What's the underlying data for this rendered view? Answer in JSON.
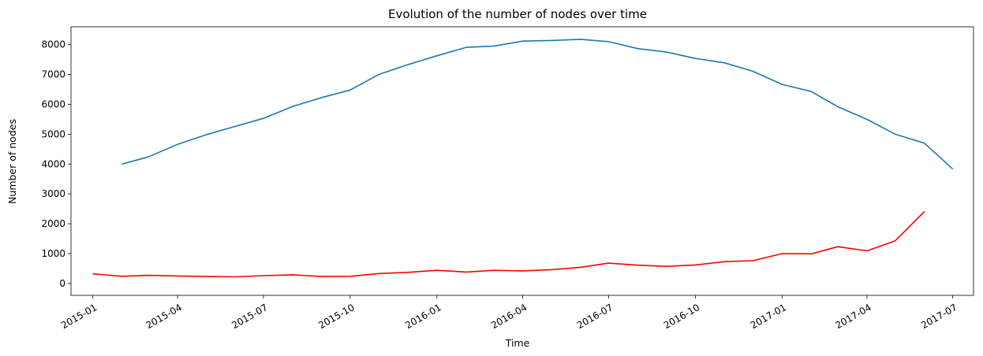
{
  "chart_data": {
    "type": "line",
    "title": "Evolution of the number of nodes over time",
    "xlabel": "Time",
    "ylabel": "Number of nodes",
    "xlim": [
      "2014-12-09",
      "2017-07-23"
    ],
    "ylim": [
      -400,
      8600
    ],
    "grid": false,
    "legend": "none",
    "x_ticks": [
      "2015-01",
      "2015-04",
      "2015-07",
      "2015-10",
      "2016-01",
      "2016-04",
      "2016-07",
      "2016-10",
      "2017-01",
      "2017-04",
      "2017-07"
    ],
    "y_ticks": [
      "0",
      "1000",
      "2000",
      "3000",
      "4000",
      "5000",
      "6000",
      "7000",
      "8000"
    ],
    "series": [
      {
        "color": "#1f77b4",
        "x": [
          "2015-02",
          "2015-03",
          "2015-04",
          "2015-05",
          "2015-06",
          "2015-07",
          "2015-08",
          "2015-09",
          "2015-10",
          "2015-11",
          "2015-12",
          "2016-01",
          "2016-02",
          "2016-03",
          "2016-04",
          "2016-05",
          "2016-06",
          "2016-07",
          "2016-08",
          "2016-09",
          "2016-10",
          "2016-11",
          "2016-12",
          "2017-01",
          "2017-02",
          "2017-03",
          "2017-04",
          "2017-05",
          "2017-06",
          "2017-07"
        ],
        "values": [
          4000,
          4240,
          4660,
          4980,
          5260,
          5530,
          5930,
          6230,
          6480,
          7010,
          7330,
          7630,
          7910,
          7950,
          8120,
          8140,
          8180,
          8100,
          7870,
          7750,
          7540,
          7390,
          7110,
          6670,
          6430,
          5920,
          5500,
          5000,
          4700,
          3830
        ]
      },
      {
        "color": "#ff0000",
        "x": [
          "2015-01",
          "2015-02",
          "2015-03",
          "2015-04",
          "2015-05",
          "2015-06",
          "2015-07",
          "2015-08",
          "2015-09",
          "2015-10",
          "2015-11",
          "2015-12",
          "2016-01",
          "2016-02",
          "2016-03",
          "2016-04",
          "2016-05",
          "2016-06",
          "2016-07",
          "2016-08",
          "2016-09",
          "2016-10",
          "2016-11",
          "2016-12",
          "2017-01",
          "2017-02",
          "2017-03",
          "2017-04",
          "2017-05",
          "2017-06"
        ],
        "values": [
          320,
          240,
          270,
          250,
          230,
          220,
          260,
          290,
          230,
          240,
          330,
          370,
          440,
          380,
          440,
          420,
          460,
          540,
          680,
          610,
          570,
          620,
          730,
          760,
          1000,
          990,
          1230,
          1090,
          1430,
          2410
        ]
      }
    ]
  }
}
